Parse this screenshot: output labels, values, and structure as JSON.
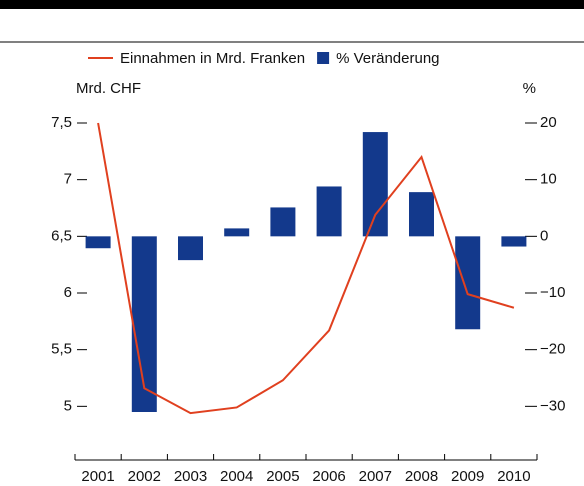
{
  "chart_data": {
    "type": "combo",
    "y_label": "Mrd. CHF",
    "y2_label": "%",
    "categories": [
      "2001",
      "2002",
      "2003",
      "2004",
      "2005",
      "2006",
      "2007",
      "2008",
      "2009",
      "2010"
    ],
    "series": [
      {
        "name": "Einnahmen in Mrd. Franken",
        "type": "line",
        "axis": "y",
        "color": "#e0401f",
        "values": [
          7.5,
          5.16,
          4.94,
          4.99,
          5.23,
          5.67,
          6.69,
          7.2,
          5.99,
          5.87
        ]
      },
      {
        "name": "% Veränderung",
        "type": "bar",
        "axis": "y2",
        "color": "#13398c",
        "values": [
          -2.1,
          -31,
          -4.2,
          1.4,
          5.1,
          8.8,
          18.4,
          7.8,
          -16.4,
          -1.8
        ]
      }
    ],
    "ylim": [
      4.5,
      7.5
    ],
    "yticks": [
      5,
      {
        "value": 5.5,
        "label": "5,5"
      },
      6,
      {
        "value": 6.5,
        "label": "6,5"
      },
      7,
      {
        "value": 7.5,
        "label": "7,5"
      }
    ],
    "y2lim": [
      -40,
      20
    ],
    "y2ticks": [
      {
        "value": -30,
        "label": "−30"
      },
      {
        "value": -20,
        "label": "−20"
      },
      {
        "value": -10,
        "label": "−10"
      },
      0,
      10,
      20
    ]
  }
}
